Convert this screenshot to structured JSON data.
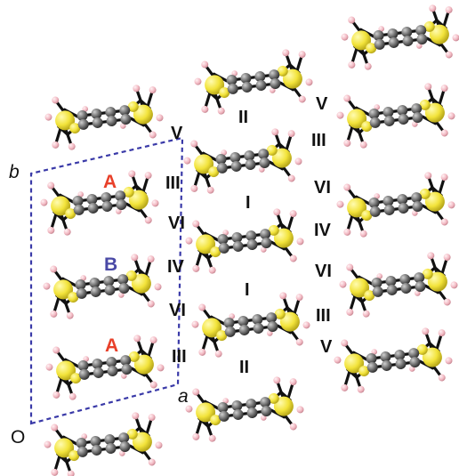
{
  "axes": {
    "b_label": "b",
    "a_label": "a",
    "origin_label": "O"
  },
  "molecule_labels": {
    "top": "A",
    "middle": "B",
    "bottom": "A"
  },
  "contact_labels": {
    "cell_column": [
      "V",
      "III",
      "VI",
      "IV",
      "VI",
      "III"
    ],
    "middle_left": [
      "II",
      "I",
      "I",
      "II"
    ],
    "right_column": [
      "V",
      "III",
      "VI",
      "IV",
      "VI",
      "III",
      "V"
    ]
  },
  "colors": {
    "sulfur": "#f2e33a",
    "carbon": "#6e6e6e",
    "hydrogen": "#f2b8c2",
    "bond": "#111111",
    "cell_edge": "#3a3aa8",
    "label_A": "#e8402a",
    "label_B": "#4a49a6"
  }
}
